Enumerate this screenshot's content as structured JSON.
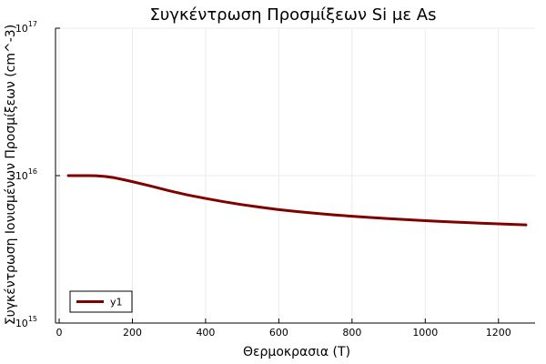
{
  "chart_data": {
    "type": "line",
    "title": "Συγκέντρωση Προσμίξεων Si με As",
    "xlabel": "Θερμοκρασια (T)",
    "ylabel": "Συγκέντρωση Ιονισμένων Προσμίξεων (cm^-3)",
    "yscale": "log10",
    "xlim": [
      -10,
      1300
    ],
    "ylim": [
      1000000000000000.0,
      1e+17
    ],
    "x_ticks": [
      0,
      200,
      400,
      600,
      800,
      1000,
      1200
    ],
    "y_ticks": [
      {
        "value": 1000000000000000.0,
        "base": "10",
        "exp": "15"
      },
      {
        "value": 1e+16,
        "base": "10",
        "exp": "16"
      },
      {
        "value": 1e+17,
        "base": "10",
        "exp": "17"
      }
    ],
    "grid": true,
    "legend_position": "bottom-left",
    "series": [
      {
        "name": "y1",
        "color": "#800000",
        "x": [
          25,
          50,
          75,
          100,
          125,
          150,
          175,
          200,
          250,
          300,
          350,
          400,
          450,
          500,
          550,
          600,
          650,
          700,
          750,
          800,
          850,
          900,
          950,
          1000,
          1050,
          1100,
          1150,
          1200,
          1250,
          1275
        ],
        "y": [
          1e+16,
          1e+16,
          1e+16,
          9980000000000000.0,
          9880000000000000.0,
          9680000000000000.0,
          9400000000000000.0,
          9100000000000000.0,
          8500000000000000.0,
          7900000000000000.0,
          7400000000000000.0,
          7000000000000000.0,
          6650000000000000.0,
          6350000000000000.0,
          6100000000000000.0,
          5880000000000000.0,
          5700000000000000.0,
          5550000000000000.0,
          5420000000000000.0,
          5300000000000000.0,
          5200000000000000.0,
          5110000000000000.0,
          5030000000000000.0,
          4950000000000000.0,
          4880000000000000.0,
          4820000000000000.0,
          4760000000000000.0,
          4710000000000000.0,
          4660000000000000.0,
          4630000000000000.0
        ]
      }
    ]
  }
}
